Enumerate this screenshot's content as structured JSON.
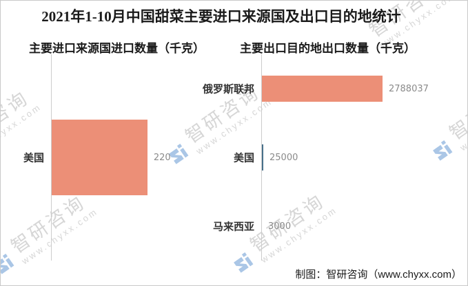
{
  "page": {
    "title": "2021年1-10月中国甜菜主要进口来源国及出口目的地统计"
  },
  "chart_data": [
    {
      "type": "bar",
      "orientation": "horizontal",
      "title": "主要进口来源国进口数量（千克）",
      "categories": [
        "美国"
      ],
      "values": [
        220
      ],
      "xlabel": "",
      "ylabel": "",
      "grid": false,
      "value_labels_shown": true
    },
    {
      "type": "bar",
      "orientation": "horizontal",
      "title": "主要出口目的地出口数量（千克）",
      "categories": [
        "俄罗斯联邦",
        "美国",
        "马来西亚"
      ],
      "values": [
        2788037,
        25000,
        3000
      ],
      "xlabel": "",
      "ylabel": "",
      "grid": false,
      "value_labels_shown": true
    }
  ],
  "footer": {
    "credit": "制图：智研咨询（www.chyxx.com）"
  },
  "watermark": {
    "brand": "智研咨询",
    "url": "www.chyxx.com"
  },
  "colors": {
    "bar": "#EC8F77",
    "sliver_bar": "#48708A",
    "axis": "#CCCCCC",
    "title_text": "#1A1A1A",
    "label_text": "#333333",
    "value_text": "#8A8A8A",
    "credit_text": "#1A1A1A",
    "watermark_text": "#D6D6D6",
    "watermark_logo": "#AAC6E6",
    "border": "#C9C9C9",
    "background": "#FFFFFF"
  }
}
